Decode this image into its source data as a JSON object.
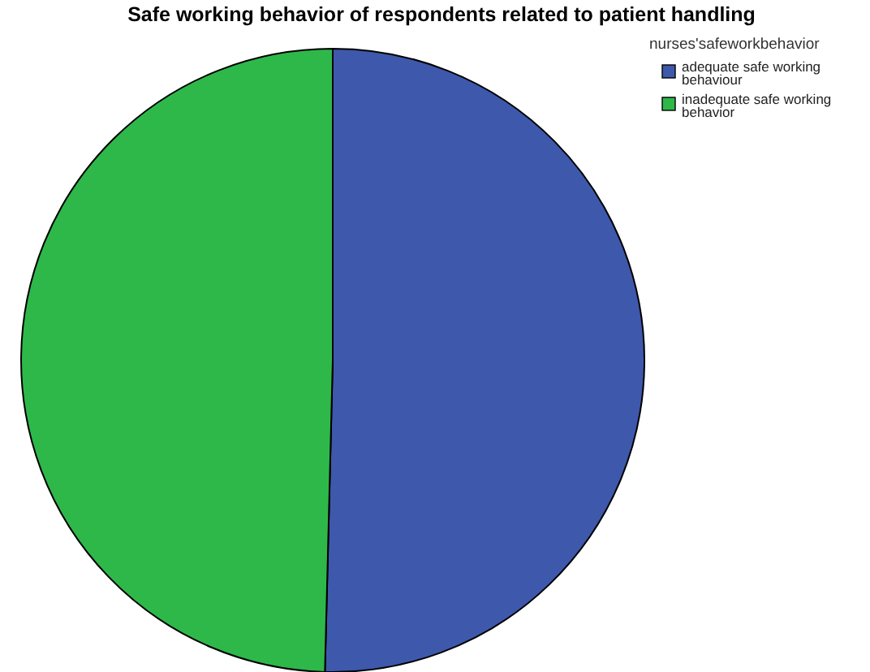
{
  "chart_data": {
    "type": "pie",
    "title": "Safe working behavior of respondents related to patient handling",
    "legend_title": "nurses'safeworkbehavior",
    "categories": [
      "adequate safe working behaviour",
      "inadequate safe working behavior"
    ],
    "values": [
      50.4,
      49.6
    ],
    "colors": [
      "#3e58ac",
      "#2eb84a"
    ],
    "legend": "top right"
  }
}
